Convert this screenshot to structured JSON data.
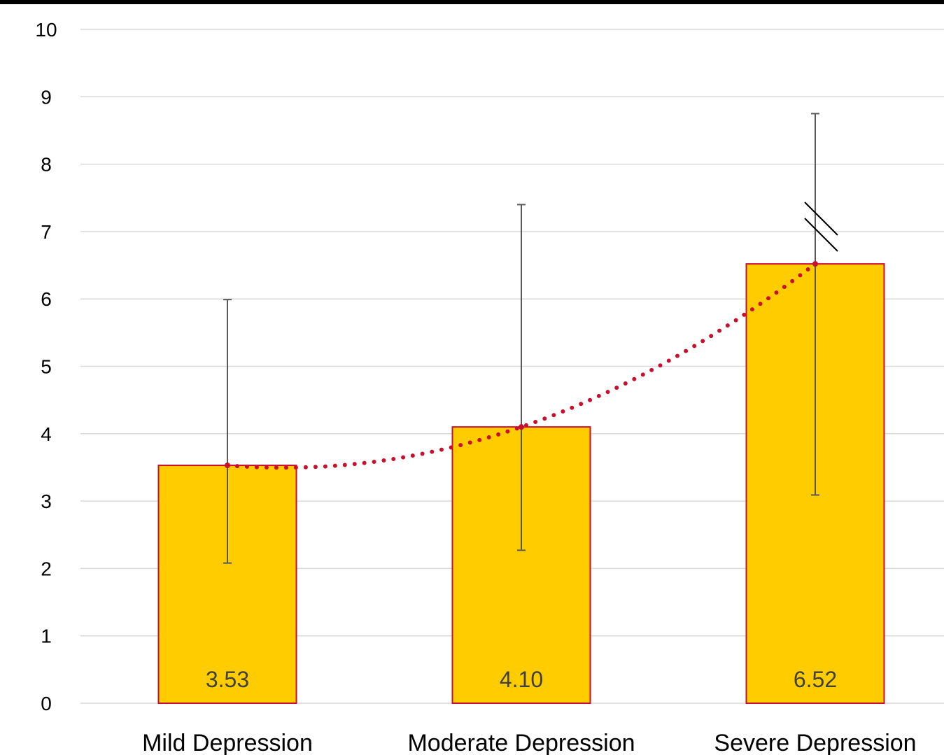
{
  "chart_data": {
    "type": "bar",
    "categories": [
      "Mild Depression",
      "Moderate Depression",
      "Severe Depression"
    ],
    "values": [
      3.53,
      4.1,
      6.52
    ],
    "value_labels": [
      "3.53",
      "4.10",
      "6.52"
    ],
    "error_bars": [
      {
        "low": 2.08,
        "high": 5.99
      },
      {
        "low": 2.27,
        "high": 7.4
      },
      {
        "low": 3.09,
        "high": 8.75
      }
    ],
    "trendline": {
      "type": "polynomial",
      "style": "dotted"
    },
    "break_marker_category": "Severe Depression",
    "ylim": [
      0,
      10
    ],
    "y_ticks": [
      "0",
      "1",
      "2",
      "3",
      "4",
      "5",
      "6",
      "7",
      "8",
      "9",
      "10"
    ],
    "grid": true,
    "legend": "none",
    "colors": {
      "bar_fill": "#FFCC00",
      "bar_border": "#C8102E",
      "trendline": "#C8102E",
      "error_bar": "#595959",
      "grid": "#D9D9D9",
      "top_rule": "#000000",
      "data_label": "#404040"
    }
  }
}
